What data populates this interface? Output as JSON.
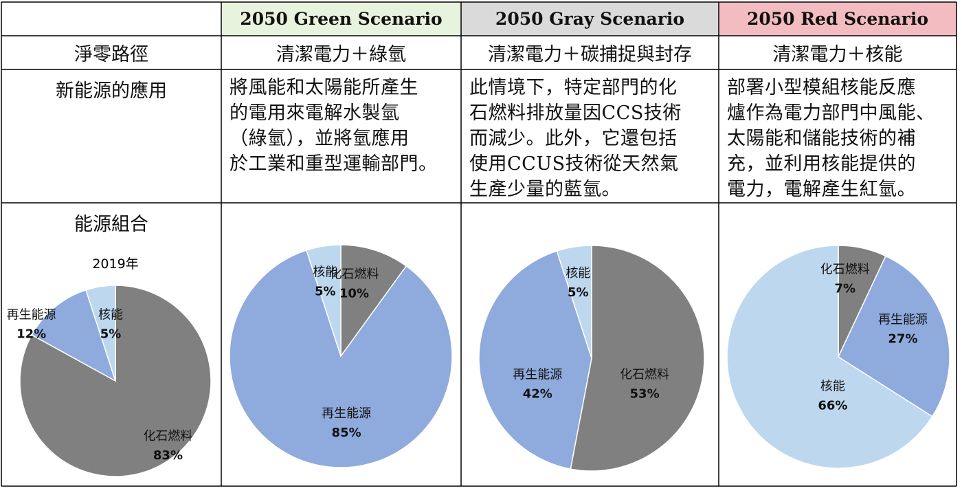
{
  "header": {
    "green": {
      "label": "2050 Green Scenario",
      "bg": "#e8f3de"
    },
    "gray": {
      "label": "2050 Gray Scenario",
      "bg": "#dadada"
    },
    "red": {
      "label": "2050 Red Scenario",
      "bg": "#f2bcc0"
    }
  },
  "rows": {
    "pathway": {
      "label": "淨零路徑",
      "green": "清潔電力＋綠氫",
      "gray": "清潔電力＋碳捕捉與封存",
      "red": "清潔電力＋核能"
    },
    "application": {
      "label": "新能源的應用",
      "green": [
        "將風能和太陽能所產生",
        "的電用來電解水製氫",
        "（綠氫），並將氫應用",
        "於工業和重型運輸部門。"
      ],
      "gray": [
        "此情境下，特定部門的化",
        "石燃料排放量因CCS技術",
        "而減少。此外，它還包括",
        "使用CCUS技術從天然氣",
        "生產少量的藍氫。"
      ],
      "red": [
        "部署小型模組核能反應",
        "爐作為電力部門中風能、",
        "太陽能和儲能技術的補",
        "充，並利用核能提供的",
        "電力，電解產生紅氫。"
      ]
    },
    "mix": {
      "label": "能源組合"
    }
  },
  "colors": {
    "fossil": "#808080",
    "renewable": "#8faadc",
    "nuclear": "#bdd7ee",
    "border": "#000000"
  },
  "chart_data": [
    {
      "type": "pie",
      "title": "2019年",
      "categories": [
        "化石燃料",
        "再生能源",
        "核能"
      ],
      "values": [
        83,
        12,
        5
      ],
      "value_labels": [
        "83%",
        "12%",
        "5%"
      ],
      "colors": [
        "#808080",
        "#8faadc",
        "#bdd7ee"
      ]
    },
    {
      "type": "pie",
      "title": "",
      "categories": [
        "化石燃料",
        "再生能源",
        "核能"
      ],
      "values": [
        10,
        85,
        5
      ],
      "value_labels": [
        "10%",
        "85%",
        "5%"
      ],
      "colors": [
        "#808080",
        "#8faadc",
        "#bdd7ee"
      ]
    },
    {
      "type": "pie",
      "title": "",
      "categories": [
        "化石燃料",
        "再生能源",
        "核能"
      ],
      "values": [
        53,
        42,
        5
      ],
      "value_labels": [
        "53%",
        "42%",
        "5%"
      ],
      "colors": [
        "#808080",
        "#8faadc",
        "#bdd7ee"
      ]
    },
    {
      "type": "pie",
      "title": "",
      "categories": [
        "化石燃料",
        "再生能源",
        "核能"
      ],
      "values": [
        7,
        27,
        66
      ],
      "value_labels": [
        "7%",
        "27%",
        "66%"
      ],
      "colors": [
        "#808080",
        "#8faadc",
        "#bdd7ee"
      ]
    }
  ]
}
